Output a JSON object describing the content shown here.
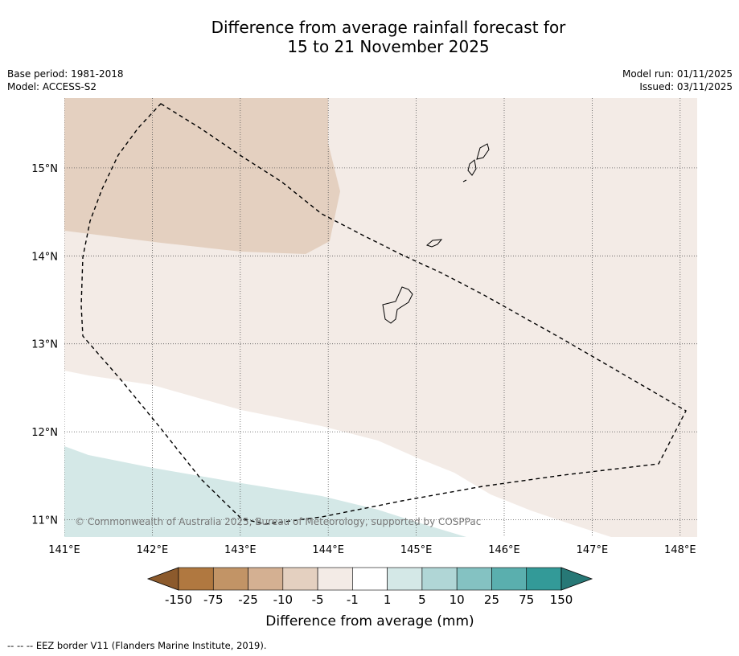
{
  "title": {
    "line1": "Difference from average rainfall forecast for",
    "line2": "15 to 21 November 2025"
  },
  "meta": {
    "base_period": "Base period: 1981-2018",
    "model": "Model: ACCESS-S2",
    "model_run": "Model run: 01/11/2025",
    "issued": "Issued: 03/11/2025"
  },
  "map": {
    "lon_range": [
      141,
      148.2
    ],
    "lat_range": [
      10.8,
      15.8
    ],
    "x_ticks": [
      "141°E",
      "142°E",
      "143°E",
      "144°E",
      "145°E",
      "146°E",
      "147°E",
      "148°E"
    ],
    "y_ticks": [
      "15°N",
      "14°N",
      "13°N",
      "12°N",
      "11°N"
    ],
    "copyright": "© Commonwealth of Australia 2025, Bureau of Meteorology, supported by COSPPac"
  },
  "legend": {
    "labels": [
      "-150",
      "-75",
      "-25",
      "-10",
      "-5",
      "-1",
      "1",
      "5",
      "10",
      "25",
      "75",
      "150"
    ],
    "colors": [
      "#8c5a2c",
      "#b07840",
      "#c29466",
      "#d4b092",
      "#e4d0c0",
      "#f3ebe6",
      "#ffffff",
      "#d4e8e7",
      "#b0d6d6",
      "#84c2c2",
      "#5aafae",
      "#339a98",
      "#277876"
    ],
    "title": "Difference from average (mm)"
  },
  "footer": "--  --  -- EEZ border V11 (Flanders Marine Institute, 2019).",
  "colors": {
    "dry_moderate": "#e4d0c0",
    "dry_light": "#f3ebe6",
    "neutral": "#ffffff",
    "wet_light": "#d4e8e7"
  }
}
